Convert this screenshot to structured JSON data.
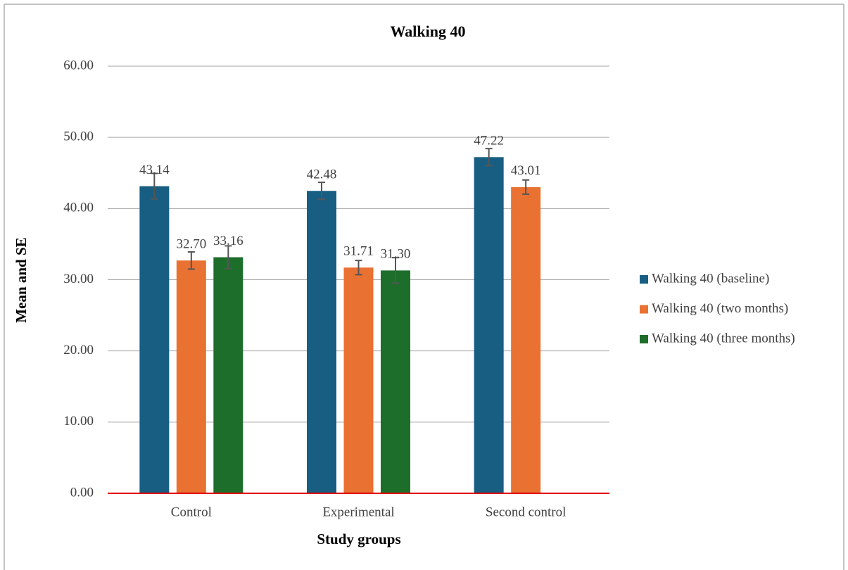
{
  "chart_data": {
    "type": "bar",
    "title": "Walking 40",
    "x_label": "Study groups",
    "y_label": "Mean and SE",
    "categories": [
      "Control",
      "Experimental",
      "Second control"
    ],
    "series": [
      {
        "name": "Walking 40 (baseline)",
        "color": "#175e82",
        "values": [
          43.14,
          42.48,
          47.22
        ],
        "value_labels": [
          "43.14",
          "42.48",
          "47.22"
        ],
        "errors": [
          1.8,
          1.2,
          1.2
        ]
      },
      {
        "name": "Walking 40 (two months)",
        "color": "#e97132",
        "values": [
          32.7,
          31.71,
          43.01
        ],
        "value_labels": [
          "32.70",
          "31.71",
          "43.01"
        ],
        "errors": [
          1.2,
          1.0,
          1.0
        ]
      },
      {
        "name": "Walking 40 (three months)",
        "color": "#1e6e2b",
        "values": [
          33.16,
          31.3,
          null
        ],
        "value_labels": [
          "33.16",
          "31.30",
          null
        ],
        "errors": [
          1.6,
          1.8,
          null
        ]
      }
    ],
    "ylim": [
      0,
      60
    ],
    "yticks": [
      {
        "value": 0,
        "label": "0.00"
      },
      {
        "value": 10,
        "label": "10.00"
      },
      {
        "value": 20,
        "label": "20.00"
      },
      {
        "value": 30,
        "label": "30.00"
      },
      {
        "value": 40,
        "label": "40.00"
      },
      {
        "value": 50,
        "label": "50.00"
      },
      {
        "value": 60,
        "label": "60.00"
      }
    ],
    "grid": true,
    "legend": "right"
  }
}
